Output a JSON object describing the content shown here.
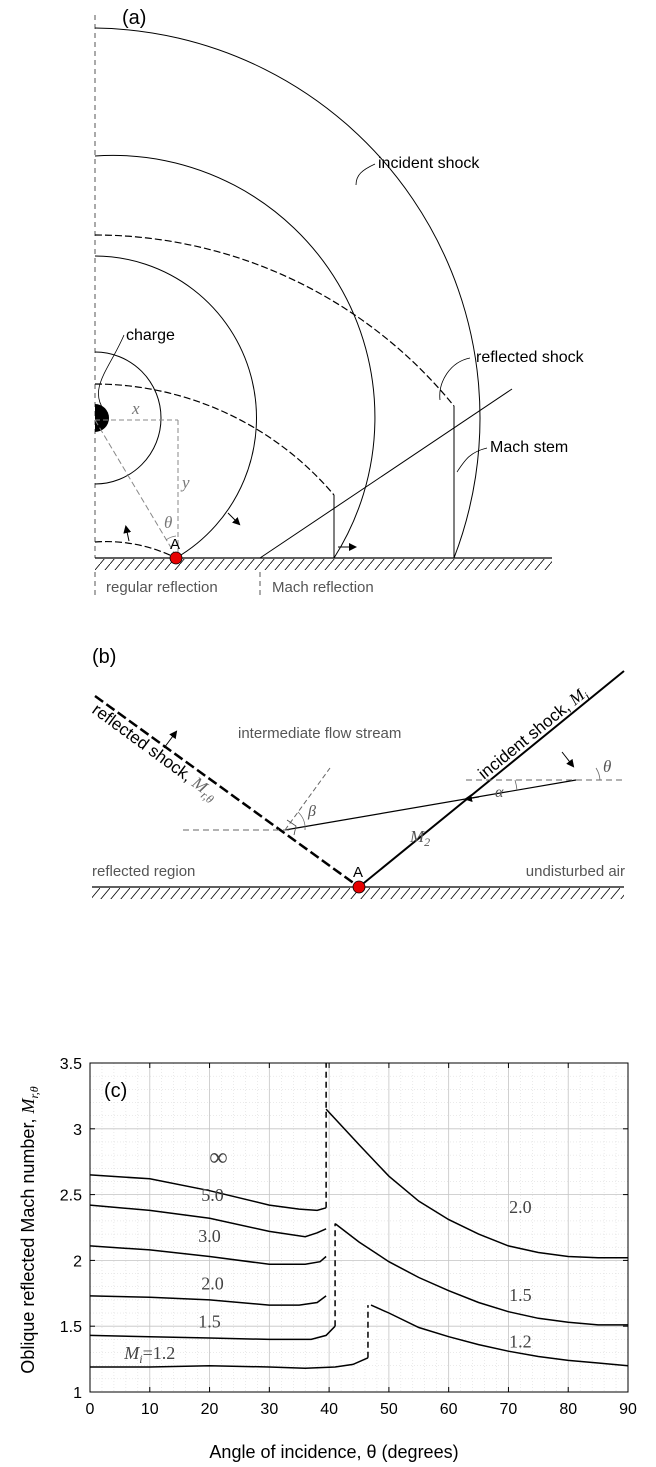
{
  "panel_a": {
    "tag": "(a)",
    "labels": {
      "incident_shock": "incident shock",
      "charge": "charge",
      "reflected_shock": "reflected shock",
      "mach_stem": "Mach stem",
      "x": "x",
      "y": "y",
      "theta": "θ",
      "point": "A",
      "regular_reflection": "regular reflection",
      "mach_reflection": "Mach reflection"
    }
  },
  "panel_b": {
    "tag": "(b)",
    "labels": {
      "reflected_shock": "reflected shock,",
      "reflected_symbol": "M",
      "reflected_sub": "r,θ",
      "incident_shock": "incident shock,",
      "incident_symbol": "M",
      "incident_sub": "i",
      "intermediate": "intermediate flow stream",
      "m2_symbol": "M",
      "m2_sub": "2",
      "alpha": "α",
      "beta": "β",
      "theta": "θ",
      "point": "A",
      "reflected_region": "reflected region",
      "undisturbed_air": "undisturbed air"
    }
  },
  "chart_data": {
    "type": "line",
    "tag": "(c)",
    "xlabel": "Angle of incidence,  θ  (degrees)",
    "ylabel_text": "Oblique reflected Mach number,",
    "ylabel_symbol": "M",
    "ylabel_sub": "r,θ",
    "xlim": [
      0,
      90
    ],
    "ylim": [
      1,
      3.5
    ],
    "xticks": [
      "0",
      "10",
      "20",
      "30",
      "40",
      "50",
      "60",
      "70",
      "80",
      "90"
    ],
    "yticks": [
      "1",
      "1.5",
      "2",
      "2.5",
      "3",
      "3.5"
    ],
    "grid": true,
    "series": [
      {
        "name": "∞",
        "x": [
          0,
          10,
          20,
          30,
          35,
          38,
          39.5
        ],
        "y": [
          2.65,
          2.62,
          2.53,
          2.42,
          2.39,
          2.38,
          2.4
        ]
      },
      {
        "name": "5.0",
        "x": [
          0,
          10,
          20,
          30,
          36,
          38,
          39.5
        ],
        "y": [
          2.42,
          2.38,
          2.32,
          2.22,
          2.18,
          2.21,
          2.24
        ]
      },
      {
        "name": "3.0",
        "x": [
          0,
          10,
          20,
          30,
          36,
          38.5,
          39.5
        ],
        "y": [
          2.11,
          2.08,
          2.03,
          1.97,
          1.97,
          1.99,
          2.03
        ]
      },
      {
        "name": "2.0",
        "x": [
          0,
          10,
          20,
          30,
          35,
          38,
          39.5
        ],
        "y": [
          1.73,
          1.72,
          1.7,
          1.66,
          1.66,
          1.68,
          1.73
        ]
      },
      {
        "name": "1.5",
        "x": [
          0,
          10,
          20,
          30,
          37,
          39.5,
          41
        ],
        "y": [
          1.43,
          1.42,
          1.41,
          1.4,
          1.4,
          1.43,
          1.5
        ]
      },
      {
        "name": "M_i=1.2",
        "x": [
          0,
          10,
          20,
          30,
          36,
          41,
          44,
          46.5
        ],
        "y": [
          1.19,
          1.19,
          1.2,
          1.19,
          1.18,
          1.19,
          1.21,
          1.26
        ]
      },
      {
        "name": "2.0",
        "x": [
          39.5,
          45,
          50,
          55,
          60,
          65,
          70,
          75,
          80,
          85,
          90
        ],
        "y": [
          3.15,
          2.88,
          2.64,
          2.45,
          2.31,
          2.2,
          2.11,
          2.06,
          2.03,
          2.02,
          2.02
        ]
      },
      {
        "name": "1.5",
        "x": [
          41,
          45,
          50,
          55,
          60,
          65,
          70,
          75,
          80,
          85,
          90
        ],
        "y": [
          2.28,
          2.14,
          1.99,
          1.87,
          1.77,
          1.68,
          1.61,
          1.56,
          1.53,
          1.51,
          1.51
        ]
      },
      {
        "name": "1.2",
        "x": [
          47,
          50,
          55,
          60,
          65,
          70,
          75,
          80,
          85,
          90
        ],
        "y": [
          1.66,
          1.6,
          1.49,
          1.42,
          1.36,
          1.31,
          1.27,
          1.24,
          1.22,
          1.2
        ]
      }
    ],
    "dashed_transitions": [
      {
        "x": 39.5,
        "y": [
          2.4,
          3.5
        ]
      },
      {
        "x": 41,
        "y": [
          1.5,
          2.28
        ]
      },
      {
        "x": 46.5,
        "y": [
          1.26,
          1.66
        ]
      }
    ],
    "curve_labels": [
      {
        "text": "∞",
        "x": 21.5,
        "y": 2.72
      },
      {
        "text": "5.0",
        "x": 20.5,
        "y": 2.45
      },
      {
        "text": "3.0",
        "x": 20,
        "y": 2.14
      },
      {
        "text": "2.0",
        "x": 20.5,
        "y": 1.78
      },
      {
        "text": "1.5",
        "x": 20,
        "y": 1.49
      },
      {
        "text": "M",
        "sub": "i",
        "after": "=1.2",
        "x": 10,
        "y": 1.25
      },
      {
        "text": "2.0",
        "x": 72,
        "y": 2.36
      },
      {
        "text": "1.5",
        "x": 72,
        "y": 1.69
      },
      {
        "text": "1.2",
        "x": 72,
        "y": 1.34
      }
    ]
  }
}
